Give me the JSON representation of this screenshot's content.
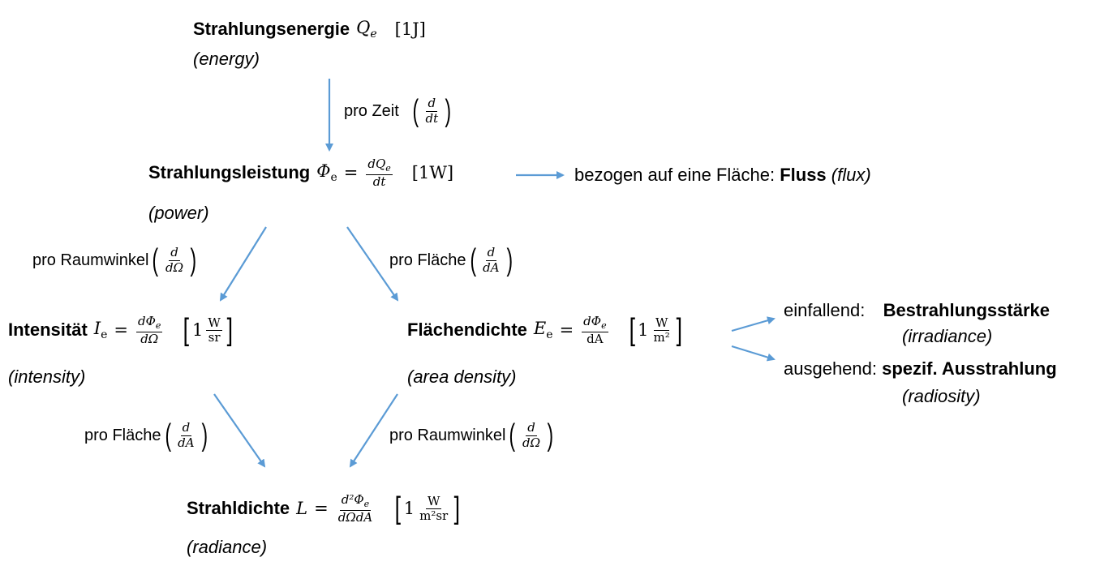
{
  "energy": {
    "label": "Strahlungsenergie",
    "symbol": "Q",
    "sub": "e",
    "unit": "[1J]",
    "en": "(energy)"
  },
  "step_time": {
    "label": "pro Zeit",
    "num": "d",
    "den": "dt"
  },
  "power": {
    "label": "Strahlungsleistung",
    "symbol": "Φ",
    "sub": "e",
    "eq": "=",
    "num": "dQ",
    "num_sub": "e",
    "den": "dt",
    "unit": "[1W]",
    "en": "(power)"
  },
  "flux_note": {
    "prefix": "bezogen auf eine Fläche:",
    "bold": "Fluss",
    "en": "(flux)"
  },
  "step_solid_angle_1": {
    "label": "pro Raumwinkel",
    "num": "d",
    "den": "dΩ"
  },
  "step_area_1": {
    "label": "pro Fläche",
    "num": "d",
    "den": "dA"
  },
  "intensity": {
    "label": "Intensität",
    "symbol": "I",
    "sub": "e",
    "eq": "=",
    "num": "dΦ",
    "num_sub": "e",
    "den": "dΩ",
    "unit_one": "1",
    "unit_num": "W",
    "unit_den": "sr",
    "en": "(intensity)"
  },
  "area_density": {
    "label": "Flächendichte",
    "symbol": "E",
    "sub": "e",
    "eq": "=",
    "num": "dΦ",
    "num_sub": "e",
    "den": "dA",
    "unit_one": "1",
    "unit_num": "W",
    "unit_den": "m²",
    "en": "(area density)"
  },
  "incident": {
    "prefix": "einfallend:",
    "bold": "Bestrahlungsstärke",
    "en": "(irradiance)"
  },
  "outgoing": {
    "prefix": "ausgehend:",
    "bold": "spezif. Ausstrahlung",
    "en": "(radiosity)"
  },
  "step_area_2": {
    "label": "pro Fläche",
    "num": "d",
    "den": "dA"
  },
  "step_solid_angle_2": {
    "label": "pro Raumwinkel",
    "num": "d",
    "den": "dΩ"
  },
  "radiance": {
    "label": "Strahldichte",
    "symbol": "L",
    "eq": "=",
    "num": "d²Φ",
    "num_sub": "e",
    "den": "dΩdA",
    "unit_one": "1",
    "unit_num": "W",
    "unit_den": "m²sr",
    "en": "(radiance)"
  },
  "colors": {
    "arrow": "#5b9bd5",
    "text": "#000000"
  }
}
